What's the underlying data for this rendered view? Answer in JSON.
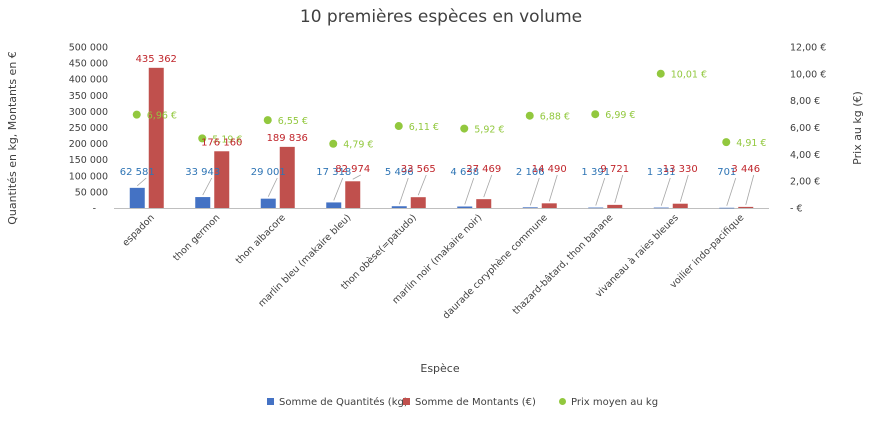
{
  "chart_data": {
    "type": "bar",
    "title": "10 premières espèces en volume",
    "xlabel": "Espèce",
    "ylabel": "Quantités en kg, Montants en €",
    "y2label": "Prix au kg (€)",
    "categories": [
      "espadon",
      "thon germon",
      "thon albacore",
      "marlin bleu (makaire bleu)",
      "thon obèse(=patudo)",
      "marlin noir (makaire noir)",
      "daurade coryphène commune",
      "thazard-bâtard, thon banane",
      "vivaneau à raies bleues",
      "voilier indo-pacifique"
    ],
    "series": [
      {
        "name": "Somme de Quantités (kg)",
        "type": "bar",
        "axis": "left",
        "color": "#4472c4",
        "values": [
          62581,
          33943,
          29001,
          17318,
          5496,
          4638,
          2106,
          1391,
          1331,
          701
        ],
        "labels": [
          "62 581",
          "33 943",
          "29 001",
          "17 318",
          "5 496",
          "4 638",
          "2 106",
          "1 391",
          "1 331",
          "701"
        ]
      },
      {
        "name": "Somme de Montants (€)",
        "type": "bar",
        "axis": "left",
        "color": "#c0504d",
        "values": [
          435362,
          176160,
          189836,
          82974,
          33565,
          27469,
          14490,
          9721,
          13330,
          3446
        ],
        "labels": [
          "435 362",
          "176 160",
          "189 836",
          "82 974",
          "33 565",
          "27 469",
          "14 490",
          "9 721",
          "13 330",
          "3 446"
        ]
      },
      {
        "name": "Prix moyen au kg",
        "type": "scatter",
        "axis": "right",
        "color": "#92c83e",
        "values": [
          6.96,
          5.19,
          6.55,
          4.79,
          6.11,
          5.92,
          6.88,
          6.99,
          10.01,
          4.91
        ],
        "labels": [
          "6,96 €",
          "5,19 €",
          "6,55 €",
          "4,79 €",
          "6,11 €",
          "5,92 €",
          "6,88 €",
          "6,99 €",
          "10,01 €",
          "4,91 €"
        ]
      }
    ],
    "ylim": [
      0,
      500000
    ],
    "yticks": [
      "500 000",
      "450 000",
      "400 000",
      "350 000",
      "300 000",
      "250 000",
      "200 000",
      "150 000",
      "100 000",
      "50 000",
      "-"
    ],
    "y2lim": [
      0,
      12
    ],
    "y2ticks": [
      "12,00 €",
      "10,00 €",
      "8,00 €",
      "6,00 €",
      "4,00 €",
      "2,00 €",
      "- €"
    ],
    "grid": false,
    "legend": "bottom"
  }
}
